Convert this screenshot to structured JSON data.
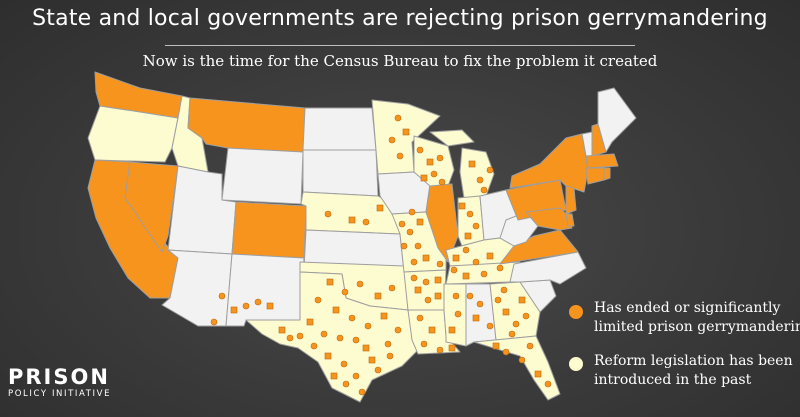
{
  "title": "State and local governments are rejecting prison gerrymandering",
  "subtitle": "Now is the time for the Census Bureau to fix the problem it created",
  "colors": {
    "ended": "#f7941d",
    "legislation": "#fdfbd0",
    "none": "#f2f2f2",
    "border": "#9e9e9e"
  },
  "legend": [
    {
      "key": "ended",
      "text": "Has ended or significantly limited prison gerrymandering"
    },
    {
      "key": "legislation",
      "text": "Reform legislation has been introduced in the past"
    }
  ],
  "logo": {
    "line1": "PRISON",
    "line2": "POLICY INITIATIVE"
  }
}
